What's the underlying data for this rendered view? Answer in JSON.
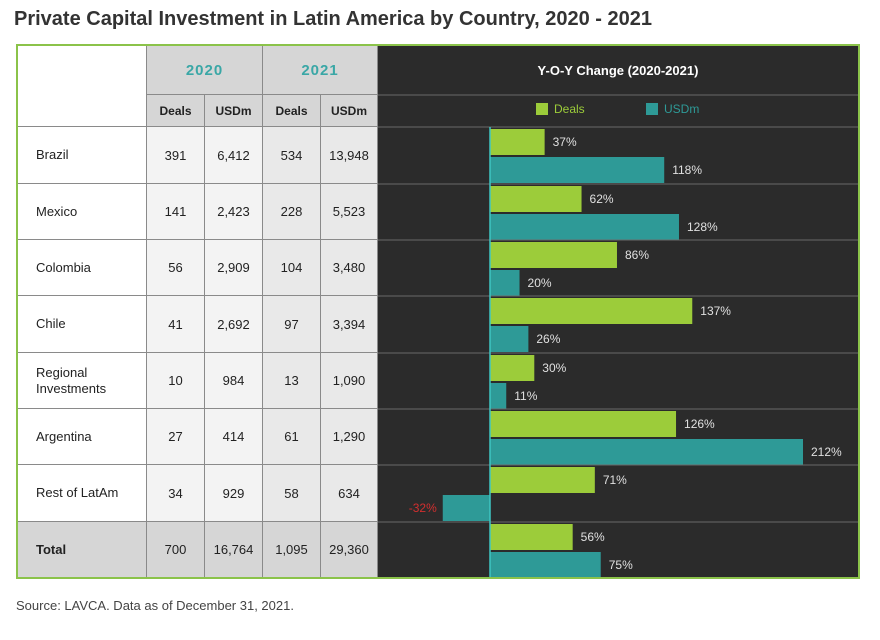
{
  "title": "Private Capital Investment in Latin America by Country, 2020 - 2021",
  "source": "Source: LAVCA. Data as of December 31, 2021.",
  "table": {
    "year_headers": [
      "2020",
      "2021"
    ],
    "sub_headers": [
      "Deals",
      "USDm",
      "Deals",
      "USDm"
    ],
    "rows": [
      {
        "country": "Brazil",
        "values": [
          "391",
          "6,412",
          "534",
          "13,948"
        ]
      },
      {
        "country": "Mexico",
        "values": [
          "141",
          "2,423",
          "228",
          "5,523"
        ]
      },
      {
        "country": "Colombia",
        "values": [
          "56",
          "2,909",
          "104",
          "3,480"
        ]
      },
      {
        "country": "Chile",
        "values": [
          "41",
          "2,692",
          "97",
          "3,394"
        ]
      },
      {
        "country": "Regional Investments",
        "values": [
          "10",
          "984",
          "13",
          "1,090"
        ]
      },
      {
        "country": "Argentina",
        "values": [
          "27",
          "414",
          "61",
          "1,290"
        ]
      },
      {
        "country": "Rest of LatAm",
        "values": [
          "34",
          "929",
          "58",
          "634"
        ]
      },
      {
        "country": "Total",
        "values": [
          "700",
          "16,764",
          "1,095",
          "29,360"
        ]
      }
    ]
  },
  "chart_data": {
    "type": "bar",
    "title": "Y-O-Y Change (2020-2021)",
    "orientation": "horizontal",
    "categories": [
      "Brazil",
      "Mexico",
      "Colombia",
      "Chile",
      "Regional Investments",
      "Argentina",
      "Rest of LatAm",
      "Total"
    ],
    "series": [
      {
        "name": "Deals",
        "color": "#9ccc3a",
        "values": [
          37,
          62,
          86,
          137,
          30,
          126,
          71,
          56
        ],
        "labels": [
          "37%",
          "62%",
          "86%",
          "137%",
          "30%",
          "126%",
          "71%",
          "56%"
        ]
      },
      {
        "name": "USDm",
        "color": "#2e9a97",
        "values": [
          118,
          128,
          20,
          26,
          11,
          212,
          -32,
          75
        ],
        "labels": [
          "118%",
          "128%",
          "20%",
          "26%",
          "11%",
          "212%",
          "-32%",
          "75%"
        ]
      }
    ],
    "xlim": [
      -32,
      212
    ],
    "legend_position": "top",
    "label_color": "#e0e0e0",
    "negative_label_color": "#d32f2f",
    "background": "#2b2b2b"
  }
}
